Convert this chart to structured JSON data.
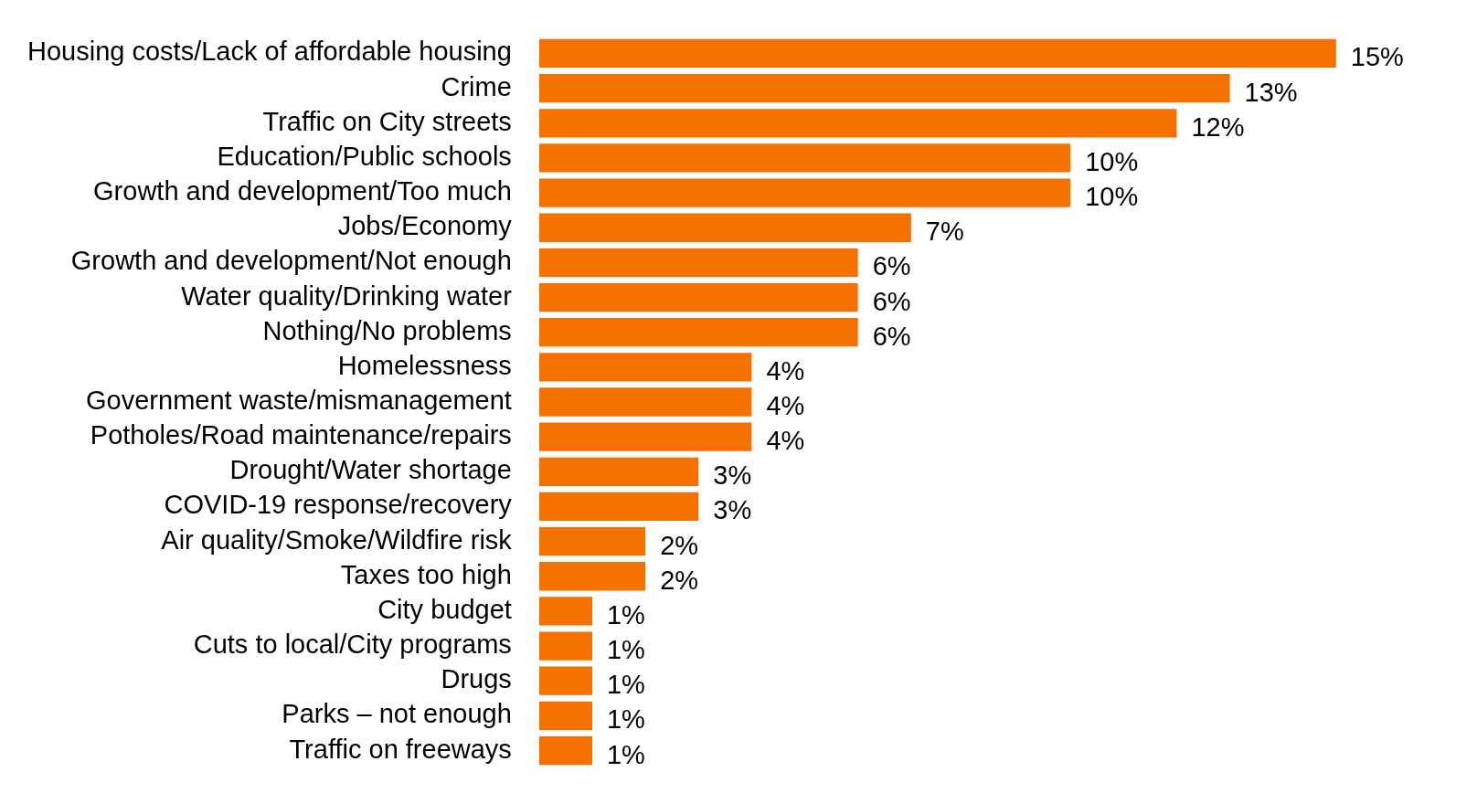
{
  "chart_data": {
    "type": "bar",
    "orientation": "horizontal",
    "categories": [
      "Housing costs/Lack of affordable housing",
      "Crime",
      "Traffic on City streets",
      "Education/Public schools",
      "Growth and development/Too much",
      "Jobs/Economy",
      "Growth and development/Not enough",
      "Water quality/Drinking water",
      "Nothing/No problems",
      "Homelessness",
      "Government waste/mismanagement",
      "Potholes/Road maintenance/repairs",
      "Drought/Water shortage",
      "COVID-19 response/recovery",
      "Air quality/Smoke/Wildfire risk",
      "Taxes too high",
      "City budget",
      "Cuts to local/City programs",
      "Drugs",
      "Parks – not enough",
      "Traffic on freeways"
    ],
    "values": [
      15,
      13,
      12,
      10,
      10,
      7,
      6,
      6,
      6,
      4,
      4,
      4,
      3,
      3,
      2,
      2,
      1,
      1,
      1,
      1,
      1
    ],
    "value_labels": [
      "15%",
      "13%",
      "12%",
      "10%",
      "10%",
      "7%",
      "6%",
      "6%",
      "6%",
      "4%",
      "4%",
      "4%",
      "3%",
      "3%",
      "2%",
      "2%",
      "1%",
      "1%",
      "1%",
      "1%",
      "1%"
    ],
    "color": "#f47100",
    "legend": false
  }
}
